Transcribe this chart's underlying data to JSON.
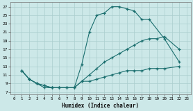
{
  "background_color": "#cce8e8",
  "grid_color": "#aacece",
  "line_color": "#1a6e6e",
  "xlabel": "Humidex (Indice chaleur)",
  "xlim": [
    -0.5,
    23.5
  ],
  "ylim": [
    6.5,
    28
  ],
  "xticks": [
    0,
    1,
    2,
    3,
    4,
    5,
    6,
    7,
    8,
    9,
    10,
    11,
    12,
    13,
    14,
    15,
    16,
    17,
    18,
    19,
    20,
    21,
    22,
    23
  ],
  "yticks": [
    7,
    9,
    11,
    13,
    15,
    17,
    19,
    21,
    23,
    25,
    27
  ],
  "line1_x": [
    1,
    2,
    3,
    4,
    5,
    6,
    7,
    8,
    9,
    10,
    11,
    12,
    13,
    14,
    15,
    16,
    17,
    18,
    20,
    22
  ],
  "line1_y": [
    12,
    10,
    9,
    8,
    8,
    8,
    8,
    8,
    13.5,
    21,
    25,
    25.5,
    27,
    27,
    26.5,
    26,
    24,
    24,
    19.5,
    14
  ],
  "line2_x": [
    1,
    2,
    3,
    4,
    5,
    6,
    7,
    8,
    9,
    10,
    11,
    12,
    13,
    14,
    15,
    16,
    17,
    18,
    19,
    20,
    22
  ],
  "line2_y": [
    12,
    10,
    9,
    8.5,
    8,
    8,
    8,
    8,
    9.5,
    11,
    12.5,
    14,
    15,
    16,
    17,
    18,
    19,
    19.5,
    19.5,
    20,
    17
  ],
  "line3_x": [
    1,
    2,
    3,
    4,
    5,
    6,
    7,
    8,
    9,
    10,
    11,
    12,
    13,
    14,
    15,
    16,
    17,
    18,
    19,
    20,
    22
  ],
  "line3_y": [
    12,
    10,
    9,
    8.5,
    8,
    8,
    8,
    8,
    9.5,
    9.5,
    10,
    10.5,
    11,
    11.5,
    12,
    12,
    12,
    12.5,
    12.5,
    12.5,
    13
  ]
}
